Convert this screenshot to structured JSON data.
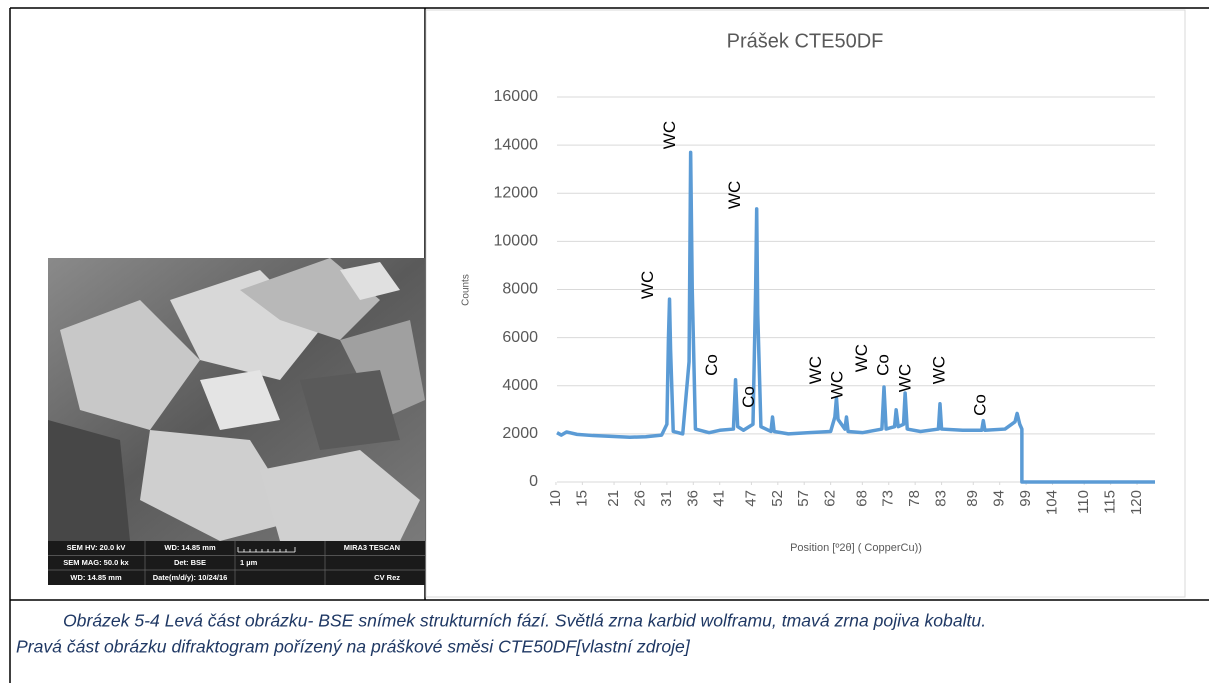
{
  "sem_image": {
    "info_bar": [
      "SEM HV: 20.0 kV",
      "WD: 14.85 mm",
      "MIRA3 TESCAN",
      "SEM MAG: 50.0 kx",
      "Det: BSE",
      "1 µm",
      "WD: 14.85 mm",
      "Date(m/d/y): 10/24/16",
      "CV Rez"
    ]
  },
  "chart_data": {
    "type": "line",
    "title": "Prášek CTE50DF",
    "x_label": "Position [º2θ] ( CopperCu))",
    "y_label": "Counts",
    "color": "#5b9bd5",
    "grid": true,
    "x": [
      10.2,
      11,
      12,
      14,
      17,
      20,
      24,
      27,
      30,
      31.0,
      31.3,
      31.5,
      31.7,
      32.2,
      34,
      35.2,
      35.5,
      35.8,
      36.4,
      39,
      41,
      43.6,
      44.0,
      44.4,
      45.5,
      47.3,
      47.8,
      48.0,
      48.2,
      48.8,
      50.7,
      51.0,
      51.3,
      54,
      58,
      62,
      62.8,
      63.1,
      63.4,
      64.7,
      65.0,
      65.3,
      68,
      71.7,
      72.1,
      72.5,
      74.1,
      74.4,
      74.8,
      75.8,
      76.1,
      76.5,
      79,
      82.4,
      82.7,
      83.0,
      87,
      90.6,
      90.9,
      91.2,
      95,
      96.9,
      97.3,
      97.8,
      98.2,
      98.2,
      123.4
    ],
    "values": [
      2050,
      1950,
      2080,
      1980,
      1930,
      1900,
      1860,
      1880,
      1950,
      2400,
      6000,
      7600,
      5500,
      2100,
      2000,
      5000,
      13700,
      8000,
      2200,
      2050,
      2150,
      2200,
      4250,
      2300,
      2150,
      2400,
      8000,
      11350,
      7000,
      2300,
      2100,
      2700,
      2100,
      2000,
      2050,
      2100,
      2700,
      3500,
      2600,
      2200,
      2700,
      2100,
      2050,
      2200,
      3950,
      2200,
      2300,
      3000,
      2300,
      2400,
      3700,
      2200,
      2100,
      2200,
      3250,
      2200,
      2150,
      2150,
      2550,
      2150,
      2200,
      2500,
      2850,
      2400,
      2200,
      0,
      0
    ],
    "xlim": [
      10.2,
      123.4
    ],
    "xticks": [
      10,
      15,
      21,
      26,
      31,
      36,
      41,
      47,
      52,
      57,
      62,
      68,
      73,
      78,
      83,
      89,
      94,
      99,
      104,
      110,
      115,
      120
    ],
    "ylim": [
      0,
      16000
    ],
    "yticks": [
      0,
      2000,
      4000,
      6000,
      8000,
      10000,
      12000,
      14000,
      16000
    ],
    "annotations": [
      {
        "text": "WC",
        "x": 27.5,
        "y": 8190
      },
      {
        "text": "WC",
        "x": 31.7,
        "y": 14420
      },
      {
        "text": "WC",
        "x": 44.0,
        "y": 11930
      },
      {
        "text": "Co",
        "x": 39.6,
        "y": 4860
      },
      {
        "text": "Co",
        "x": 46.6,
        "y": 3530
      },
      {
        "text": "WC",
        "x": 59.3,
        "y": 4650
      },
      {
        "text": "WC",
        "x": 63.4,
        "y": 4030
      },
      {
        "text": "WC",
        "x": 68.0,
        "y": 5150
      },
      {
        "text": "Co",
        "x": 72.1,
        "y": 4860
      },
      {
        "text": "WC",
        "x": 76.3,
        "y": 4320
      },
      {
        "text": "WC",
        "x": 82.7,
        "y": 4650
      },
      {
        "text": "Co",
        "x": 90.5,
        "y": 3200
      }
    ]
  },
  "caption": {
    "lines": [
      "Obrázek 5-4 Levá část obrázku- BSE snímek strukturních fází. Světlá zrna karbid wolframu, tmavá zrna pojiva kobaltu.",
      "Pravá část obrázku difraktogram pořízený na práškové směsi CTE50DF[vlastní zdroje]"
    ]
  }
}
